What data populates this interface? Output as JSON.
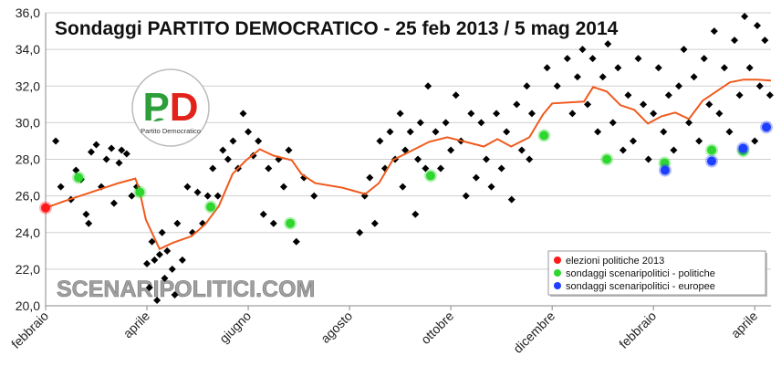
{
  "chart_data": {
    "type": "scatter",
    "title": "Sondaggi PARTITO DEMOCRATICO - 25 feb 2013 / 5 mag 2014",
    "watermark": "SCENARIPOLITICI.COM",
    "logo": {
      "text": "PD",
      "caption": "Partito Democratico"
    },
    "xlim": [
      0,
      14.32
    ],
    "ylim": [
      20,
      36
    ],
    "xticks": [
      {
        "value": 0,
        "label": "febbraio"
      },
      {
        "value": 2,
        "label": "aprile"
      },
      {
        "value": 4,
        "label": "giugno"
      },
      {
        "value": 6,
        "label": "agosto"
      },
      {
        "value": 8,
        "label": "ottobre"
      },
      {
        "value": 10,
        "label": "dicembre"
      },
      {
        "value": 12,
        "label": "febbraio"
      },
      {
        "value": 14,
        "label": "aprile"
      }
    ],
    "yticks": [
      {
        "value": 20,
        "label": "20,0"
      },
      {
        "value": 22,
        "label": "22,0"
      },
      {
        "value": 24,
        "label": "24,0"
      },
      {
        "value": 26,
        "label": "26,0"
      },
      {
        "value": 28,
        "label": "28,0"
      },
      {
        "value": 30,
        "label": "30,0"
      },
      {
        "value": 32,
        "label": "32,0"
      },
      {
        "value": 34,
        "label": "34,0"
      },
      {
        "value": 36,
        "label": "36,0"
      }
    ],
    "grid": true,
    "legend": "lower right",
    "series": [
      {
        "type": "scatter",
        "marker": "diamond",
        "color": "#000000",
        "x": [
          0.2,
          0.3,
          0.5,
          0.6,
          0.7,
          0.8,
          0.85,
          0.9,
          1.0,
          1.1,
          1.2,
          1.3,
          1.35,
          1.45,
          1.5,
          1.6,
          1.7,
          1.8,
          2.0,
          2.05,
          2.1,
          2.15,
          2.2,
          2.25,
          2.3,
          2.35,
          2.4,
          2.5,
          2.55,
          2.6,
          2.7,
          2.8,
          2.9,
          3.0,
          3.1,
          3.2,
          3.3,
          3.4,
          3.5,
          3.6,
          3.7,
          3.8,
          3.9,
          4.0,
          4.1,
          4.2,
          4.3,
          4.4,
          4.5,
          4.6,
          4.7,
          4.8,
          4.95,
          5.1,
          5.3,
          6.2,
          6.3,
          6.4,
          6.5,
          6.6,
          6.7,
          6.8,
          6.9,
          7.0,
          7.05,
          7.1,
          7.2,
          7.3,
          7.35,
          7.4,
          7.5,
          7.55,
          7.7,
          7.8,
          7.9,
          8.0,
          8.1,
          8.2,
          8.3,
          8.4,
          8.5,
          8.6,
          8.7,
          8.8,
          8.9,
          9.0,
          9.1,
          9.2,
          9.3,
          9.4,
          9.5,
          9.55,
          9.6,
          9.9,
          10.1,
          10.3,
          10.4,
          10.5,
          10.6,
          10.7,
          10.8,
          10.9,
          11.0,
          11.1,
          11.2,
          11.3,
          11.4,
          11.5,
          11.6,
          11.7,
          11.8,
          11.9,
          12.0,
          12.1,
          12.2,
          12.3,
          12.4,
          12.5,
          12.6,
          12.7,
          12.8,
          12.9,
          13.0,
          13.1,
          13.2,
          13.3,
          13.4,
          13.5,
          13.6,
          13.7,
          13.8,
          13.9,
          14.0,
          14.05,
          14.1,
          14.2,
          14.3
        ],
        "values": [
          29.0,
          26.5,
          25.8,
          27.4,
          26.9,
          25.0,
          24.5,
          28.4,
          28.8,
          26.5,
          28.0,
          28.6,
          25.6,
          27.8,
          28.5,
          28.3,
          26.0,
          26.5,
          22.3,
          21.0,
          23.5,
          22.5,
          20.3,
          22.8,
          24.0,
          21.5,
          23.0,
          22.0,
          20.6,
          24.5,
          22.5,
          26.5,
          24.0,
          26.2,
          24.5,
          26.0,
          27.5,
          26.0,
          28.5,
          28.0,
          29.0,
          27.5,
          30.5,
          29.5,
          28.2,
          29.0,
          25.0,
          27.5,
          24.5,
          28.0,
          26.5,
          28.5,
          23.5,
          27.0,
          26.0,
          24.0,
          26.0,
          27.0,
          24.5,
          29.0,
          27.5,
          29.5,
          28.0,
          30.5,
          26.5,
          28.5,
          29.5,
          25.0,
          28.0,
          30.0,
          27.5,
          32.0,
          29.5,
          27.5,
          30.0,
          28.5,
          31.5,
          29.0,
          26.0,
          30.5,
          27.0,
          30.0,
          28.0,
          26.5,
          30.5,
          27.5,
          29.5,
          25.8,
          31.0,
          28.5,
          32.0,
          28.0,
          30.5,
          33.0,
          32.0,
          33.5,
          30.5,
          32.5,
          34.0,
          31.0,
          33.5,
          29.5,
          32.5,
          34.3,
          30.0,
          33.0,
          28.5,
          31.5,
          29.0,
          33.5,
          31.0,
          28.0,
          30.5,
          33.0,
          29.5,
          31.5,
          28.5,
          32.0,
          34.0,
          30.0,
          32.5,
          29.0,
          33.5,
          31.0,
          35.0,
          30.5,
          33.0,
          29.5,
          34.5,
          31.5,
          35.8,
          33.0,
          29.0,
          35.3,
          32.0,
          34.5,
          31.5
        ]
      },
      {
        "type": "line",
        "color": "#f05a1e",
        "x": [
          0,
          0.36,
          0.9,
          1.44,
          1.77,
          1.84,
          1.98,
          2.25,
          2.52,
          2.88,
          3.15,
          3.42,
          3.69,
          3.96,
          4.23,
          4.5,
          4.86,
          5.05,
          5.32,
          5.86,
          6.31,
          6.58,
          6.85,
          7.21,
          7.57,
          7.93,
          8.29,
          8.65,
          8.92,
          9.19,
          9.55,
          9.82,
          10,
          10.63,
          10.81,
          11.08,
          11.35,
          11.62,
          11.89,
          12.16,
          12.43,
          12.7,
          12.97,
          13.24,
          13.51,
          13.78,
          14.05,
          14.32
        ],
        "values": [
          25.35,
          25.7,
          26.2,
          26.7,
          26.95,
          26.45,
          24.7,
          23.1,
          23.45,
          23.8,
          24.45,
          25.45,
          27.2,
          27.95,
          28.55,
          28.2,
          27.95,
          27.2,
          26.7,
          26.45,
          26.1,
          26.7,
          27.95,
          28.45,
          28.95,
          29.2,
          28.95,
          28.7,
          29.1,
          28.7,
          29.2,
          30.45,
          31.05,
          31.15,
          31.95,
          31.7,
          30.95,
          30.7,
          29.95,
          30.35,
          30.55,
          30.2,
          31.2,
          31.7,
          32.2,
          32.35,
          32.35,
          32.3
        ]
      },
      {
        "type": "scatter",
        "marker": "circle",
        "name": "elezioni politiche 2013",
        "color": "#ff1a1a",
        "x": [
          0
        ],
        "values": [
          25.35
        ]
      },
      {
        "type": "scatter",
        "marker": "circle",
        "name": "sondaggi scenaripolitici - politiche",
        "color": "#2fd62f",
        "x": [
          0.65,
          1.86,
          3.26,
          4.83,
          7.6,
          9.84,
          11.08,
          12.22,
          13.15,
          13.77
        ],
        "values": [
          27.0,
          26.2,
          25.4,
          24.5,
          27.1,
          29.3,
          28.0,
          27.8,
          28.5,
          28.45
        ]
      },
      {
        "type": "scatter",
        "marker": "circle",
        "name": "sondaggi scenaripolitici - europee",
        "color": "#1f3fff",
        "x": [
          12.23,
          13.15,
          13.77,
          14.23
        ],
        "values": [
          27.4,
          27.9,
          28.6,
          29.75
        ]
      }
    ]
  }
}
